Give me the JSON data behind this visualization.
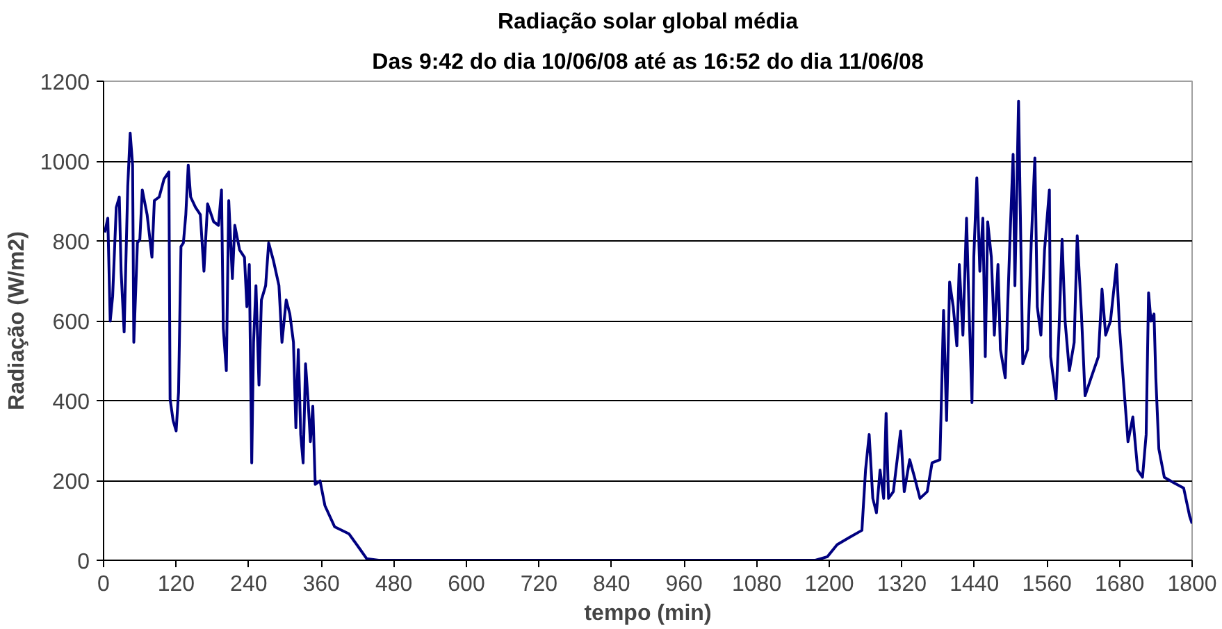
{
  "chart_data": {
    "type": "line",
    "title": "Radiação solar global média",
    "subtitle": "Das 9:42 do dia 10/06/08 até as 16:52 do dia 11/06/08",
    "xlabel": "tempo (min)",
    "ylabel": "Radiação (W/m2)",
    "xlim": [
      0,
      1800
    ],
    "xticks": [
      0,
      120,
      240,
      360,
      480,
      600,
      720,
      840,
      960,
      1080,
      1200,
      1320,
      1440,
      1560,
      1680,
      1800
    ],
    "ylim": [
      0,
      1200
    ],
    "yticks": [
      0,
      200,
      400,
      600,
      800,
      1000,
      1200
    ],
    "grid": "y",
    "marker": "none",
    "line_style": "solid",
    "series": [
      {
        "color": "#000080",
        "x": [
          2,
          7,
          11,
          15,
          21,
          26,
          29,
          34,
          40,
          44,
          48,
          50,
          56,
          60,
          64,
          72,
          80,
          84,
          92,
          100,
          108,
          110,
          115,
          120,
          124,
          128,
          132,
          136,
          140,
          144,
          152,
          160,
          166,
          172,
          182,
          190,
          195,
          198,
          203,
          207,
          213,
          217,
          225,
          233,
          237,
          241,
          245,
          248,
          252,
          257,
          261,
          268,
          273,
          281,
          290,
          295,
          302,
          308,
          314,
          318,
          322,
          326,
          330,
          334,
          338,
          342,
          346,
          350,
          358,
          366,
          382,
          406,
          423,
          435,
          455,
          1177,
          1197,
          1213,
          1233,
          1254,
          1260,
          1266,
          1272,
          1278,
          1284,
          1290,
          1294,
          1298,
          1306,
          1318,
          1324,
          1333,
          1341,
          1350,
          1362,
          1370,
          1383,
          1389,
          1394,
          1399,
          1405,
          1411,
          1415,
          1421,
          1427,
          1431,
          1436,
          1439,
          1444,
          1449,
          1454,
          1458,
          1462,
          1468,
          1473,
          1479,
          1483,
          1491,
          1499,
          1504,
          1507,
          1513,
          1516,
          1520,
          1528,
          1534,
          1540,
          1544,
          1550,
          1556,
          1564,
          1566,
          1575,
          1580,
          1585,
          1590,
          1597,
          1605,
          1610,
          1617,
          1623,
          1633,
          1645,
          1651,
          1657,
          1665,
          1675,
          1680,
          1686,
          1694,
          1702,
          1710,
          1718,
          1724,
          1728,
          1732,
          1737,
          1740,
          1745,
          1754,
          1770,
          1786,
          1796,
          1800
        ],
        "values": [
          821,
          857,
          599,
          661,
          884,
          910,
          724,
          572,
          937,
          1070,
          990,
          546,
          795,
          804,
          928,
          866,
          759,
          901,
          910,
          955,
          973,
          404,
          350,
          324,
          421,
          786,
          795,
          866,
          990,
          910,
          884,
          866,
          724,
          893,
          848,
          839,
          928,
          581,
          475,
          901,
          706,
          839,
          777,
          759,
          635,
          741,
          244,
          546,
          688,
          439,
          652,
          688,
          795,
          750,
          688,
          546,
          652,
          617,
          546,
          332,
          528,
          315,
          244,
          492,
          404,
          297,
          386,
          190,
          199,
          137,
          84,
          66,
          30,
          4,
          0,
          0,
          9,
          39,
          57,
          75,
          226,
          315,
          155,
          119,
          226,
          155,
          368,
          155,
          172,
          324,
          172,
          252,
          208,
          155,
          172,
          244,
          252,
          626,
          350,
          697,
          635,
          537,
          741,
          564,
          857,
          635,
          395,
          759,
          958,
          724,
          857,
          510,
          848,
          759,
          564,
          741,
          528,
          457,
          813,
          1017,
          688,
          1150,
          866,
          492,
          528,
          795,
          1008,
          635,
          564,
          777,
          928,
          510,
          404,
          581,
          804,
          599,
          475,
          546,
          813,
          617,
          412,
          457,
          510,
          679,
          564,
          599,
          741,
          581,
          457,
          297,
          359,
          226,
          208,
          315,
          670,
          599,
          617,
          457,
          279,
          208,
          194,
          181,
          110,
          92
        ]
      }
    ]
  }
}
